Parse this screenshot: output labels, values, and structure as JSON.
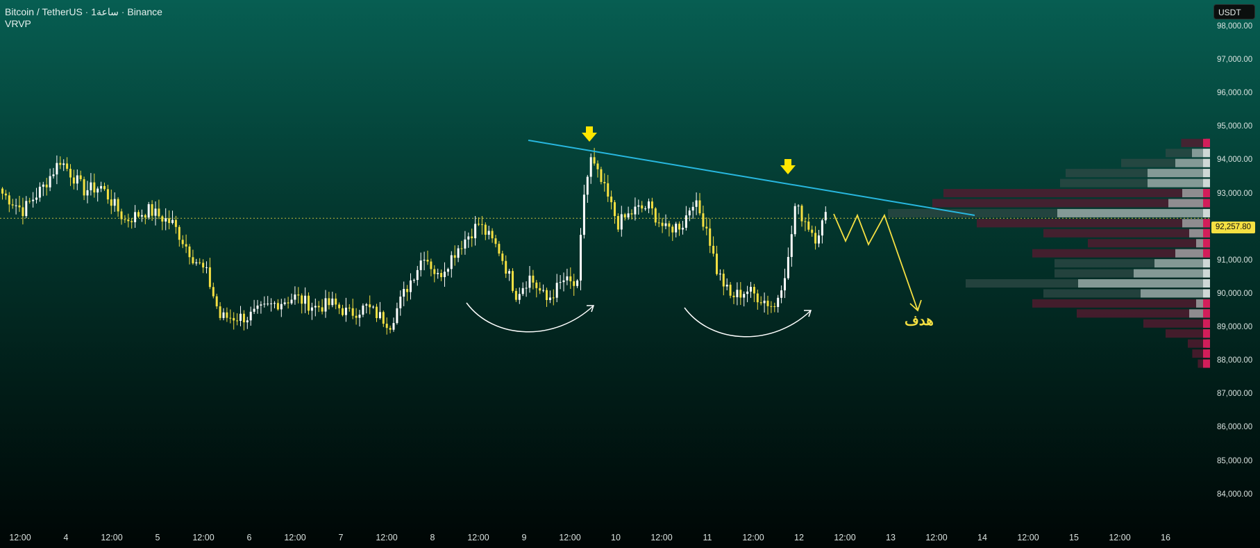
{
  "header": {
    "pair": "Bitcoin / TetherUS",
    "interval": "1ساعة",
    "exchange": "Binance",
    "indicator": "VRVP"
  },
  "currency_button": "USDT",
  "last_price_label": "92,257.80",
  "target_label": "هدف",
  "colors": {
    "bull": "#ffffff",
    "bear": "#f5e042",
    "trendline": "#28b8e0",
    "arrow": "#ffe600",
    "projection": "#f5e042",
    "vp_up": "#b8c8c4",
    "vp_down": "#d21e5a"
  },
  "chart_data": {
    "type": "candlestick",
    "price_axis": [
      "98,000.00",
      "97,000.00",
      "96,000.00",
      "95,000.00",
      "94,000.00",
      "93,000.00",
      "92,000.00",
      "91,000.00",
      "90,000.00",
      "89,000.00",
      "88,000.00",
      "87,000.00",
      "86,000.00",
      "85,000.00",
      "84,000.00"
    ],
    "time_axis": [
      "12:00",
      "4",
      "12:00",
      "5",
      "12:00",
      "6",
      "12:00",
      "7",
      "12:00",
      "8",
      "12:00",
      "9",
      "12:00",
      "10",
      "12:00",
      "11",
      "12:00",
      "12",
      "12:00",
      "13",
      "12:00",
      "14",
      "12:00",
      "15",
      "12:00",
      "16"
    ],
    "ylim": [
      83600,
      98600
    ],
    "last_price": 92257.8,
    "anchors": [
      {
        "i": 0,
        "p": 93000
      },
      {
        "i": 6,
        "p": 92500
      },
      {
        "i": 12,
        "p": 93200
      },
      {
        "i": 17,
        "p": 94000
      },
      {
        "i": 24,
        "p": 93100
      },
      {
        "i": 29,
        "p": 93200
      },
      {
        "i": 36,
        "p": 92200
      },
      {
        "i": 43,
        "p": 92500
      },
      {
        "i": 50,
        "p": 92100
      },
      {
        "i": 56,
        "p": 91100
      },
      {
        "i": 60,
        "p": 90600
      },
      {
        "i": 64,
        "p": 89300
      },
      {
        "i": 72,
        "p": 89300
      },
      {
        "i": 80,
        "p": 89700
      },
      {
        "i": 86,
        "p": 89900
      },
      {
        "i": 92,
        "p": 89600
      },
      {
        "i": 97,
        "p": 89700
      },
      {
        "i": 102,
        "p": 89400
      },
      {
        "i": 107,
        "p": 89600
      },
      {
        "i": 114,
        "p": 89100
      },
      {
        "i": 118,
        "p": 90000
      },
      {
        "i": 124,
        "p": 91200
      },
      {
        "i": 128,
        "p": 90500
      },
      {
        "i": 134,
        "p": 91400
      },
      {
        "i": 140,
        "p": 92100
      },
      {
        "i": 146,
        "p": 91300
      },
      {
        "i": 151,
        "p": 90000
      },
      {
        "i": 155,
        "p": 90500
      },
      {
        "i": 160,
        "p": 89800
      },
      {
        "i": 165,
        "p": 90400
      },
      {
        "i": 169,
        "p": 90200
      },
      {
        "i": 171,
        "p": 93000
      },
      {
        "i": 173,
        "p": 94000
      },
      {
        "i": 177,
        "p": 93100
      },
      {
        "i": 181,
        "p": 92100
      },
      {
        "i": 186,
        "p": 92500
      },
      {
        "i": 190,
        "p": 92600
      },
      {
        "i": 195,
        "p": 91900
      },
      {
        "i": 200,
        "p": 92100
      },
      {
        "i": 203,
        "p": 92800
      },
      {
        "i": 207,
        "p": 92000
      },
      {
        "i": 210,
        "p": 90700
      },
      {
        "i": 214,
        "p": 89900
      },
      {
        "i": 219,
        "p": 90100
      },
      {
        "i": 224,
        "p": 89800
      },
      {
        "i": 227,
        "p": 89600
      },
      {
        "i": 231,
        "p": 91000
      },
      {
        "i": 233,
        "p": 92600
      },
      {
        "i": 236,
        "p": 92200
      },
      {
        "i": 239,
        "p": 91700
      },
      {
        "i": 242,
        "p": 92300
      }
    ],
    "volume_profile": [
      {
        "p": 94500,
        "up": 6,
        "dn": 20
      },
      {
        "p": 94200,
        "up": 26,
        "dn": 14
      },
      {
        "p": 93900,
        "up": 50,
        "dn": 30
      },
      {
        "p": 93600,
        "up": 90,
        "dn": 40
      },
      {
        "p": 93300,
        "up": 90,
        "dn": 45
      },
      {
        "p": 93000,
        "up": 40,
        "dn": 200
      },
      {
        "p": 92700,
        "up": 60,
        "dn": 190
      },
      {
        "p": 92400,
        "up": 220,
        "dn": 70
      },
      {
        "p": 92100,
        "up": 40,
        "dn": 170
      },
      {
        "p": 91800,
        "up": 30,
        "dn": 120
      },
      {
        "p": 91500,
        "up": 20,
        "dn": 90
      },
      {
        "p": 91200,
        "up": 50,
        "dn": 110
      },
      {
        "p": 90900,
        "up": 80,
        "dn": 60
      },
      {
        "p": 90600,
        "up": 110,
        "dn": 30
      },
      {
        "p": 90300,
        "up": 190,
        "dn": 30
      },
      {
        "p": 90000,
        "up": 100,
        "dn": 50
      },
      {
        "p": 89700,
        "up": 20,
        "dn": 140
      },
      {
        "p": 89400,
        "up": 30,
        "dn": 90
      },
      {
        "p": 89100,
        "up": 10,
        "dn": 50
      },
      {
        "p": 88800,
        "up": 10,
        "dn": 30
      },
      {
        "p": 88500,
        "up": 5,
        "dn": 15
      },
      {
        "p": 88200,
        "up": 4,
        "dn": 12
      },
      {
        "p": 87900,
        "up": 3,
        "dn": 8
      }
    ]
  }
}
